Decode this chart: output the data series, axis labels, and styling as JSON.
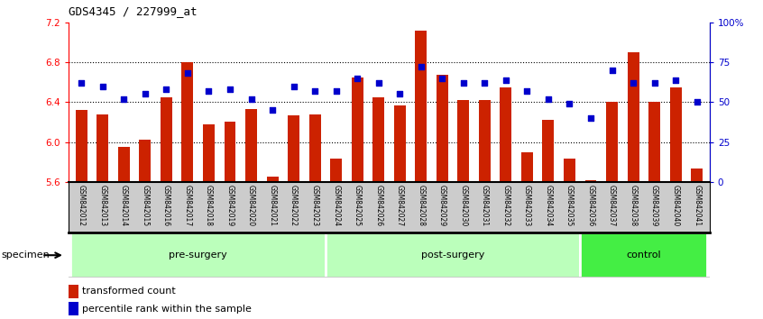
{
  "title": "GDS4345 / 227999_at",
  "samples": [
    "GSM842012",
    "GSM842013",
    "GSM842014",
    "GSM842015",
    "GSM842016",
    "GSM842017",
    "GSM842018",
    "GSM842019",
    "GSM842020",
    "GSM842021",
    "GSM842022",
    "GSM842023",
    "GSM842024",
    "GSM842025",
    "GSM842026",
    "GSM842027",
    "GSM842028",
    "GSM842029",
    "GSM842030",
    "GSM842031",
    "GSM842032",
    "GSM842033",
    "GSM842034",
    "GSM842035",
    "GSM842036",
    "GSM842037",
    "GSM842038",
    "GSM842039",
    "GSM842040",
    "GSM842041"
  ],
  "bar_values": [
    6.32,
    6.28,
    5.95,
    6.02,
    6.45,
    6.8,
    6.18,
    6.2,
    6.33,
    5.65,
    6.27,
    6.28,
    5.83,
    6.65,
    6.45,
    6.37,
    7.12,
    6.67,
    6.42,
    6.42,
    6.55,
    5.9,
    6.22,
    5.83,
    5.62,
    6.4,
    6.9,
    6.4,
    6.55,
    5.73
  ],
  "percentile_values": [
    62,
    60,
    52,
    55,
    58,
    68,
    57,
    58,
    52,
    45,
    60,
    57,
    57,
    65,
    62,
    55,
    72,
    65,
    62,
    62,
    64,
    57,
    52,
    49,
    40,
    70,
    62,
    62,
    64,
    50
  ],
  "groups": [
    {
      "label": "pre-surgery",
      "start": 0,
      "end": 12
    },
    {
      "label": "post-surgery",
      "start": 12,
      "end": 24
    },
    {
      "label": "control",
      "start": 24,
      "end": 30
    }
  ],
  "group_colors": [
    "#bbffbb",
    "#bbffbb",
    "#44ee44"
  ],
  "ylim": [
    5.6,
    7.2
  ],
  "yticks_left": [
    5.6,
    6.0,
    6.4,
    6.8,
    7.2
  ],
  "yticks_right": [
    0,
    25,
    50,
    75,
    100
  ],
  "bar_color": "#cc2200",
  "dot_color": "#0000cc",
  "bar_width": 0.55,
  "tick_label_area_color": "#cccccc",
  "specimen_label": "specimen",
  "legend_bar_label": "transformed count",
  "legend_dot_label": "percentile rank within the sample"
}
